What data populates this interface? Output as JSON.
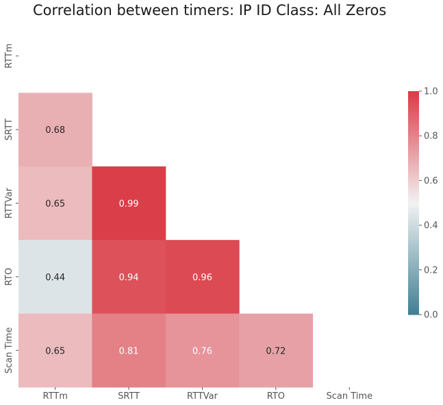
{
  "chart_data": {
    "type": "heatmap",
    "title": "Correlation between timers: IP ID Class: All Zeros",
    "xlabel": "",
    "ylabel": "",
    "labels": [
      "RTTm",
      "SRTT",
      "RTTVar",
      "RTO",
      "Scan Time"
    ],
    "mask": "upper-triangle-including-diagonal",
    "cells": [
      {
        "row": "SRTT",
        "col": "RTTm",
        "value": 0.68
      },
      {
        "row": "RTTVar",
        "col": "RTTm",
        "value": 0.65
      },
      {
        "row": "RTTVar",
        "col": "SRTT",
        "value": 0.99
      },
      {
        "row": "RTO",
        "col": "RTTm",
        "value": 0.44
      },
      {
        "row": "RTO",
        "col": "SRTT",
        "value": 0.94
      },
      {
        "row": "RTO",
        "col": "RTTVar",
        "value": 0.96
      },
      {
        "row": "Scan Time",
        "col": "RTTm",
        "value": 0.65
      },
      {
        "row": "Scan Time",
        "col": "SRTT",
        "value": 0.81
      },
      {
        "row": "Scan Time",
        "col": "RTTVar",
        "value": 0.76
      },
      {
        "row": "Scan Time",
        "col": "RTO",
        "value": 0.72
      }
    ],
    "colorbar": {
      "range": [
        0.0,
        1.0
      ],
      "ticks": [
        "0.0",
        "0.2",
        "0.4",
        "0.6",
        "0.8",
        "1.0"
      ],
      "colors": [
        "#3f7f93",
        "#f2f2f2",
        "#da3b46"
      ],
      "placement": "right"
    }
  }
}
